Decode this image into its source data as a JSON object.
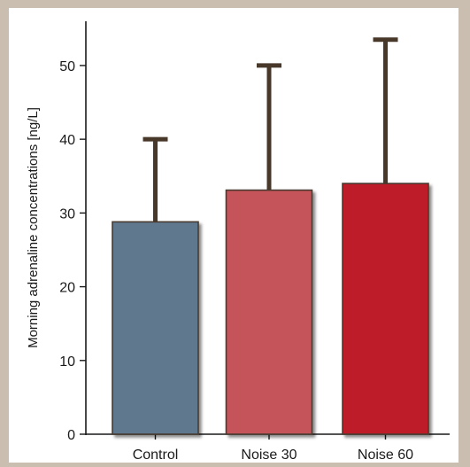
{
  "chart_data": {
    "type": "bar",
    "title": "",
    "xlabel": "",
    "ylabel": "Morning adrenaline concentrations [ng/L]",
    "ylim": [
      0,
      56
    ],
    "yticks": [
      0,
      10,
      20,
      30,
      40,
      50
    ],
    "categories": [
      "Control",
      "Noise 30",
      "Noise 60"
    ],
    "values": [
      28.8,
      33.1,
      34.0
    ],
    "error_upper": [
      40.0,
      50.0,
      53.5
    ],
    "colors": [
      "#5e788e",
      "#c5535a",
      "#bf1f2a"
    ],
    "error_bar_color": "#47382a",
    "grid": false,
    "legend": "none"
  }
}
